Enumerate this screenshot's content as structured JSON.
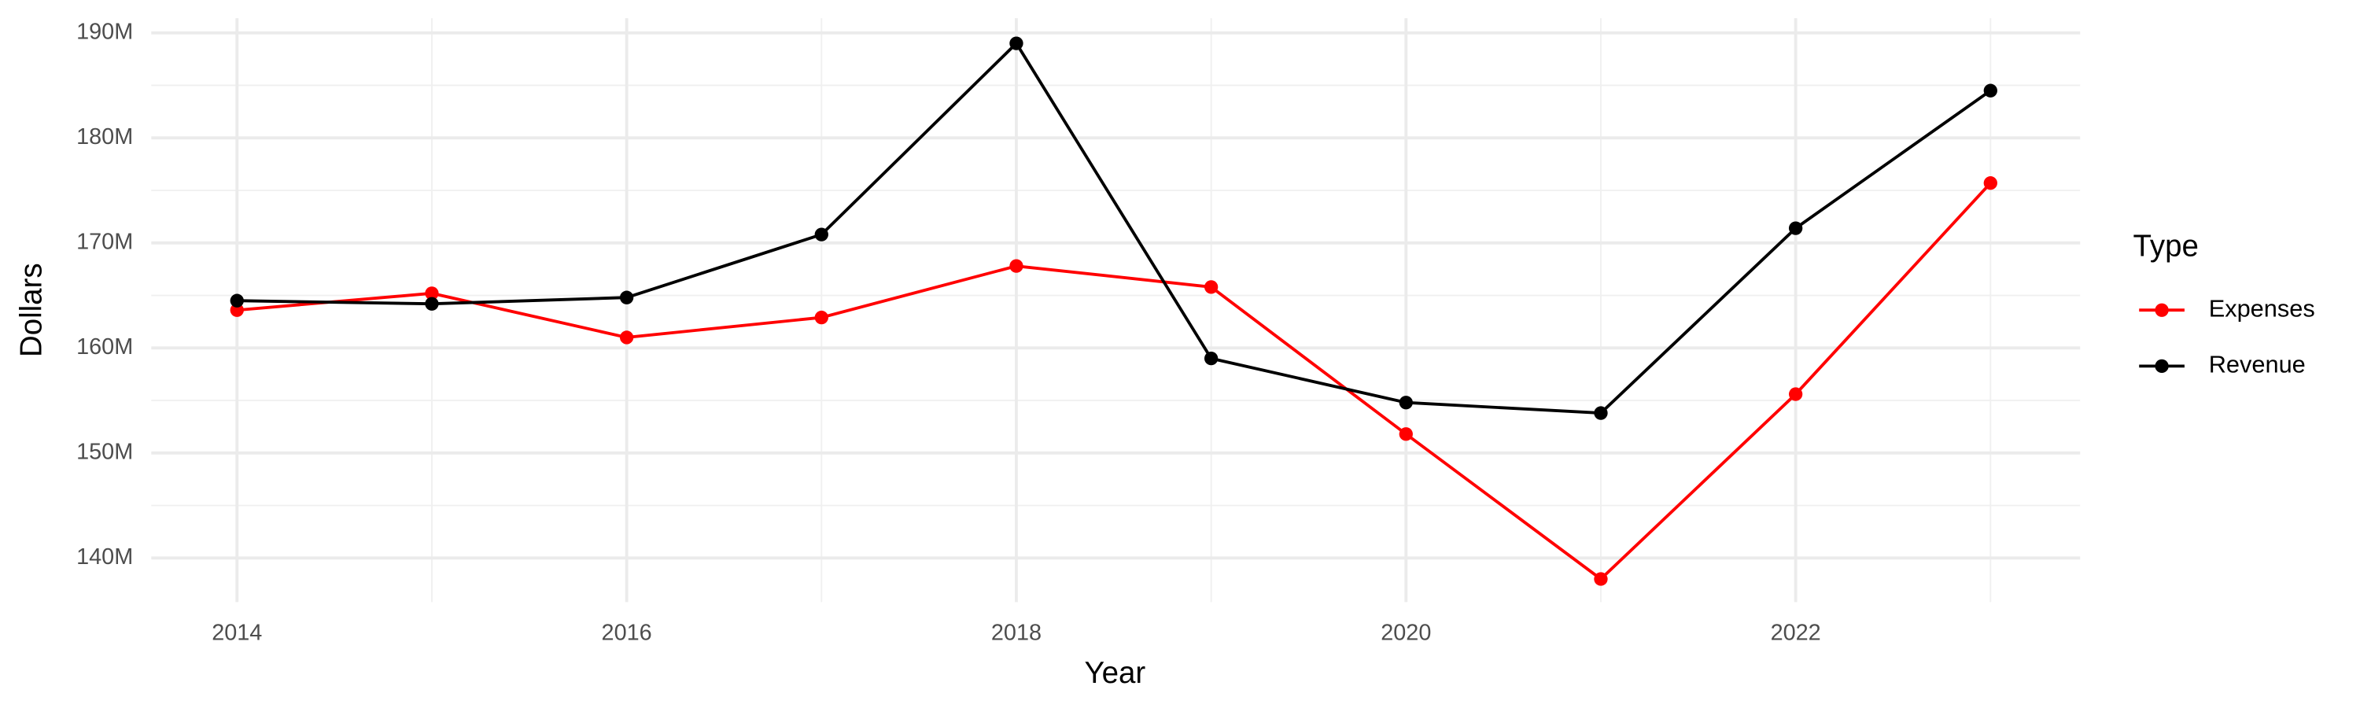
{
  "chart_data": {
    "type": "line",
    "x_label": "Year",
    "y_label": "Dollars",
    "x": [
      2014,
      2015,
      2016,
      2017,
      2018,
      2019,
      2020,
      2021,
      2022,
      2023
    ],
    "series": [
      {
        "name": "Expenses",
        "color": "#ff0000",
        "values": [
          163600000,
          165200000,
          161000000,
          162900000,
          167800000,
          165800000,
          151800000,
          138000000,
          155600000,
          175700000
        ]
      },
      {
        "name": "Revenue",
        "color": "#000000",
        "values": [
          164500000,
          164200000,
          164800000,
          170800000,
          189000000,
          159000000,
          154800000,
          153800000,
          171400000,
          184500000
        ]
      }
    ],
    "xlim": [
      2013.56,
      2023.46
    ],
    "xticks": [
      2014,
      2016,
      2018,
      2020,
      2022
    ],
    "ylim": [
      135800000,
      191400000
    ],
    "yticks": [
      {
        "value": 140000000,
        "label": "140M"
      },
      {
        "value": 150000000,
        "label": "150M"
      },
      {
        "value": 160000000,
        "label": "160M"
      },
      {
        "value": 170000000,
        "label": "170M"
      },
      {
        "value": 180000000,
        "label": "180M"
      },
      {
        "value": 190000000,
        "label": "190M"
      }
    ],
    "grid": true,
    "legend_title": "Type",
    "legend_position": "right"
  }
}
